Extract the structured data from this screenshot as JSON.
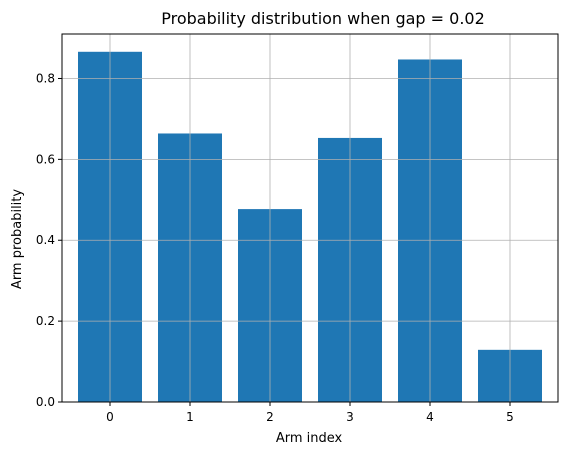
{
  "chart_data": {
    "type": "bar",
    "title": "Probability distribution when gap = 0.02",
    "xlabel": "Arm index",
    "ylabel": "Arm probability",
    "categories": [
      "0",
      "1",
      "2",
      "3",
      "4",
      "5"
    ],
    "values": [
      0.866,
      0.664,
      0.477,
      0.653,
      0.847,
      0.129
    ],
    "ylim": [
      0,
      0.91
    ],
    "yticks": [
      0.0,
      0.2,
      0.4,
      0.6,
      0.8
    ],
    "ytick_labels": [
      "0.0",
      "0.2",
      "0.4",
      "0.6",
      "0.8"
    ],
    "grid": true,
    "colors": {
      "bar": "#1f77b4",
      "grid": "#b0b0b0",
      "axis": "#000000"
    }
  }
}
